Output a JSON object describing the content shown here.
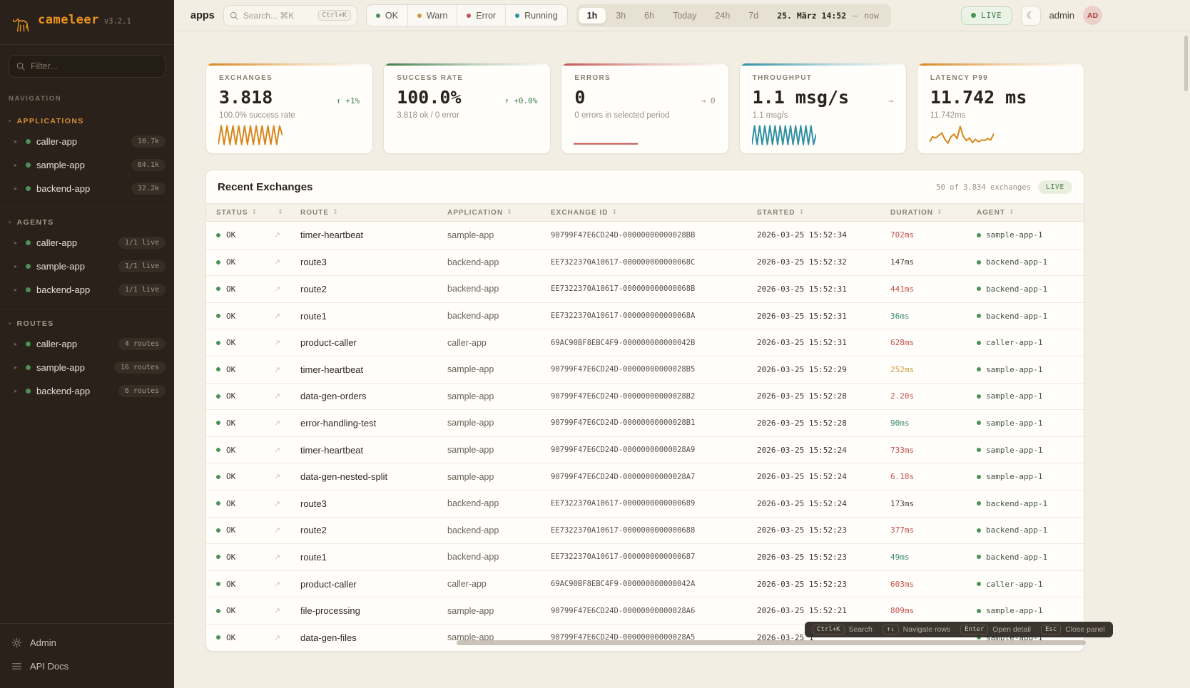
{
  "brand": {
    "name": "cameleer",
    "version": "v3.2.1"
  },
  "sidebar": {
    "filter_placeholder": "Filter...",
    "nav_label": "NAVIGATION",
    "sections": [
      {
        "title": "APPLICATIONS",
        "active": true,
        "items": [
          {
            "label": "caller-app",
            "badge": "10.7k"
          },
          {
            "label": "sample-app",
            "badge": "84.1k"
          },
          {
            "label": "backend-app",
            "badge": "32.2k"
          }
        ]
      },
      {
        "title": "AGENTS",
        "active": false,
        "items": [
          {
            "label": "caller-app",
            "badge": "1/1 live"
          },
          {
            "label": "sample-app",
            "badge": "1/1 live"
          },
          {
            "label": "backend-app",
            "badge": "1/1 live"
          }
        ]
      },
      {
        "title": "ROUTES",
        "active": false,
        "items": [
          {
            "label": "caller-app",
            "badge": "4 routes"
          },
          {
            "label": "sample-app",
            "badge": "16 routes"
          },
          {
            "label": "backend-app",
            "badge": "6 routes"
          }
        ]
      }
    ],
    "footer": [
      {
        "label": "Admin",
        "icon": "gear-icon"
      },
      {
        "label": "API Docs",
        "icon": "docs-icon"
      }
    ]
  },
  "topbar": {
    "context": "apps",
    "search_placeholder": "Search... ⌘K",
    "search_shortcut": "Ctrl+K",
    "status_filters": [
      {
        "label": "OK",
        "color": "#4d9157"
      },
      {
        "label": "Warn",
        "color": "#cf9a3d"
      },
      {
        "label": "Error",
        "color": "#c4524e"
      },
      {
        "label": "Running",
        "color": "#2f8fa3"
      }
    ],
    "ranges": [
      "1h",
      "3h",
      "6h",
      "Today",
      "24h",
      "7d"
    ],
    "active_range": "1h",
    "date_from": "25. März 14:52",
    "date_sep": "—",
    "date_to": "now",
    "live_label": "LIVE",
    "theme_icon": "☾",
    "user": "admin",
    "avatar": "AD"
  },
  "colors": {
    "green": "#4d9157",
    "amber": "#cf9a3d",
    "red": "#c4524e",
    "teal": "#2f8fa3",
    "orange": "#d8861c"
  },
  "cards": [
    {
      "title": "EXCHANGES",
      "value": "3.818",
      "trend": "↑ +1%",
      "trend_color": "#3f7d4a",
      "subtitle": "100.0% success rate",
      "accent": "#d8861c",
      "spark_values": [
        34,
        5,
        34,
        5,
        34,
        5,
        34,
        5,
        34,
        5,
        34,
        5,
        34,
        5,
        34,
        5,
        34,
        5,
        34,
        5,
        34,
        5,
        20
      ]
    },
    {
      "title": "SUCCESS RATE",
      "value": "100.0%",
      "trend": "↑ +0.0%",
      "trend_color": "#3f7d4a",
      "subtitle": "3.818 ok / 0 error",
      "accent": "#3f7d4a",
      "spark_values": []
    },
    {
      "title": "ERRORS",
      "value": "0",
      "trend": "→ 0",
      "trend_color": "#9a9082",
      "subtitle": "0 errors in selected period",
      "accent": "#c4524e",
      "spark_values": [
        33,
        33
      ]
    },
    {
      "title": "THROUGHPUT",
      "value": "1.1 msg/s",
      "trend": "→",
      "trend_color": "#9a9082",
      "subtitle": "1.1 msg/s",
      "accent": "#2f8fa3",
      "spark_values": [
        34,
        5,
        34,
        5,
        34,
        5,
        34,
        5,
        34,
        5,
        34,
        5,
        34,
        5,
        34,
        5,
        34,
        5,
        34,
        5,
        34,
        5,
        34,
        5,
        34,
        18
      ]
    },
    {
      "title": "LATENCY P99",
      "value": "11.742 ms",
      "trend": "",
      "trend_color": "#9a9082",
      "subtitle": "11.742ms",
      "accent": "#d8861c",
      "spark_values": [
        30,
        22,
        24,
        20,
        16,
        26,
        32,
        22,
        18,
        25,
        6,
        21,
        28,
        24,
        31,
        26,
        30,
        27,
        28,
        25,
        27,
        17
      ]
    }
  ],
  "table": {
    "title": "Recent Exchanges",
    "summary": "50 of 3.834 exchanges",
    "live_label": "LIVE",
    "columns": [
      "STATUS",
      "",
      "ROUTE",
      "APPLICATION",
      "EXCHANGE ID",
      "STARTED",
      "DURATION",
      "AGENT"
    ],
    "rows": [
      {
        "status": "OK",
        "route": "timer-heartbeat",
        "app": "sample-app",
        "id": "90799F47E6CD24D-00000000000028BB",
        "started": "2026-03-25 15:52:34",
        "duration": "702ms",
        "duration_color": "red",
        "agent": "sample-app-1"
      },
      {
        "status": "OK",
        "route": "route3",
        "app": "backend-app",
        "id": "EE7322370A10617-000000000000068C",
        "started": "2026-03-25 15:52:32",
        "duration": "147ms",
        "duration_color": "neutral",
        "agent": "backend-app-1"
      },
      {
        "status": "OK",
        "route": "route2",
        "app": "backend-app",
        "id": "EE7322370A10617-000000000000068B",
        "started": "2026-03-25 15:52:31",
        "duration": "441ms",
        "duration_color": "red",
        "agent": "backend-app-1"
      },
      {
        "status": "OK",
        "route": "route1",
        "app": "backend-app",
        "id": "EE7322370A10617-000000000000068A",
        "started": "2026-03-25 15:52:31",
        "duration": "36ms",
        "duration_color": "green",
        "agent": "backend-app-1"
      },
      {
        "status": "OK",
        "route": "product-caller",
        "app": "caller-app",
        "id": "69AC90BF8EBC4F9-000000000000042B",
        "started": "2026-03-25 15:52:31",
        "duration": "628ms",
        "duration_color": "red",
        "agent": "caller-app-1"
      },
      {
        "status": "OK",
        "route": "timer-heartbeat",
        "app": "sample-app",
        "id": "90799F47E6CD24D-00000000000028B5",
        "started": "2026-03-25 15:52:29",
        "duration": "252ms",
        "duration_color": "amber",
        "agent": "sample-app-1"
      },
      {
        "status": "OK",
        "route": "data-gen-orders",
        "app": "sample-app",
        "id": "90799F47E6CD24D-00000000000028B2",
        "started": "2026-03-25 15:52:28",
        "duration": "2.20s",
        "duration_color": "red",
        "agent": "sample-app-1"
      },
      {
        "status": "OK",
        "route": "error-handling-test",
        "app": "sample-app",
        "id": "90799F47E6CD24D-00000000000028B1",
        "started": "2026-03-25 15:52:28",
        "duration": "90ms",
        "duration_color": "green",
        "agent": "sample-app-1"
      },
      {
        "status": "OK",
        "route": "timer-heartbeat",
        "app": "sample-app",
        "id": "90799F47E6CD24D-00000000000028A9",
        "started": "2026-03-25 15:52:24",
        "duration": "733ms",
        "duration_color": "red",
        "agent": "sample-app-1"
      },
      {
        "status": "OK",
        "route": "data-gen-nested-split",
        "app": "sample-app",
        "id": "90799F47E6CD24D-00000000000028A7",
        "started": "2026-03-25 15:52:24",
        "duration": "6.18s",
        "duration_color": "red",
        "agent": "sample-app-1"
      },
      {
        "status": "OK",
        "route": "route3",
        "app": "backend-app",
        "id": "EE7322370A10617-0000000000000689",
        "started": "2026-03-25 15:52:24",
        "duration": "173ms",
        "duration_color": "neutral",
        "agent": "backend-app-1"
      },
      {
        "status": "OK",
        "route": "route2",
        "app": "backend-app",
        "id": "EE7322370A10617-0000000000000688",
        "started": "2026-03-25 15:52:23",
        "duration": "377ms",
        "duration_color": "red",
        "agent": "backend-app-1"
      },
      {
        "status": "OK",
        "route": "route1",
        "app": "backend-app",
        "id": "EE7322370A10617-0000000000000687",
        "started": "2026-03-25 15:52:23",
        "duration": "49ms",
        "duration_color": "green",
        "agent": "backend-app-1"
      },
      {
        "status": "OK",
        "route": "product-caller",
        "app": "caller-app",
        "id": "69AC90BF8EBC4F9-000000000000042A",
        "started": "2026-03-25 15:52:23",
        "duration": "603ms",
        "duration_color": "red",
        "agent": "caller-app-1"
      },
      {
        "status": "OK",
        "route": "file-processing",
        "app": "sample-app",
        "id": "90799F47E6CD24D-00000000000028A6",
        "started": "2026-03-25 15:52:21",
        "duration": "809ms",
        "duration_color": "red",
        "agent": "sample-app-1"
      },
      {
        "status": "OK",
        "route": "data-gen-files",
        "app": "sample-app",
        "id": "90799F47E6CD24D-00000000000028A5",
        "started": "2026-03-25 1",
        "duration": "",
        "duration_color": "neutral",
        "agent": "sample-app-1"
      }
    ]
  },
  "shortcuts": [
    {
      "key": "Ctrl+K",
      "label": "Search"
    },
    {
      "key": "↑↓",
      "label": "Navigate rows"
    },
    {
      "key": "Enter",
      "label": "Open detail"
    },
    {
      "key": "Esc",
      "label": "Close panel"
    }
  ]
}
